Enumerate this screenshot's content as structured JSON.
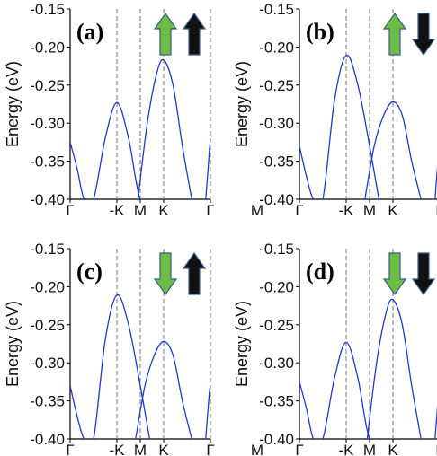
{
  "chart_data": [
    {
      "type": "line",
      "panel_label": "(a)",
      "ylabel": "Energy (eV)",
      "ylim": [
        -0.4,
        -0.15
      ],
      "yticks": [
        -0.15,
        -0.2,
        -0.25,
        -0.3,
        -0.35,
        -0.4
      ],
      "ytick_labels": [
        "-0.15",
        "-0.20",
        "-0.25",
        "-0.30",
        "-0.35",
        "-0.40"
      ],
      "xlim": [
        0,
        6
      ],
      "xticks": [
        0,
        2,
        3,
        4,
        6
      ],
      "xtick_labels": [
        "Γ",
        "-K",
        "M",
        "K",
        "Γ",
        "M"
      ],
      "xtick_positions": [
        0,
        2,
        3,
        4,
        6,
        8
      ],
      "vlines": [
        2,
        3,
        4,
        6
      ],
      "spin_arrows": [
        {
          "direction": "up",
          "color": "#6dbd45"
        },
        {
          "direction": "up",
          "color": "#111111"
        }
      ],
      "line_color": "#1f3ad1",
      "bands": [
        {
          "name": "",
          "x": [
            0,
            0.3,
            0.6,
            1.0,
            1.5,
            2.0,
            2.5,
            3.0,
            3.6
          ],
          "y": [
            -0.325,
            -0.36,
            -0.4,
            -0.4,
            -0.32,
            -0.273,
            -0.32,
            -0.4,
            -0.4
          ]
        },
        {
          "name": "",
          "x": [
            2.9,
            3.3,
            3.7,
            4.0,
            4.4,
            4.8,
            5.2
          ],
          "y": [
            -0.4,
            -0.3,
            -0.235,
            -0.217,
            -0.25,
            -0.33,
            -0.4
          ]
        },
        {
          "name": "",
          "x": [
            5.8,
            5.9,
            6.0,
            6.1,
            6.2
          ],
          "y": [
            -0.4,
            -0.36,
            -0.325,
            -0.36,
            -0.4
          ]
        }
      ]
    },
    {
      "type": "line",
      "panel_label": "(b)",
      "ylabel": "Energy (eV)",
      "ylim": [
        -0.4,
        -0.15
      ],
      "yticks": [
        -0.15,
        -0.2,
        -0.25,
        -0.3,
        -0.35,
        -0.4
      ],
      "ytick_labels": [
        "-0.15",
        "-0.20",
        "-0.25",
        "-0.30",
        "-0.35",
        "-0.40"
      ],
      "xlim": [
        0,
        6
      ],
      "xticks": [
        0,
        2,
        3,
        4,
        6
      ],
      "xtick_labels": [
        "Γ",
        "-K",
        "M",
        "K",
        "Γ",
        "M"
      ],
      "xtick_positions": [
        0,
        2,
        3,
        4,
        6,
        8
      ],
      "vlines": [
        2,
        3,
        4,
        6
      ],
      "spin_arrows": [
        {
          "direction": "up",
          "color": "#6dbd45"
        },
        {
          "direction": "down",
          "color": "#111111"
        }
      ],
      "line_color": "#1f3ad1",
      "bands": [
        {
          "name": "",
          "x": [
            0,
            0.3,
            0.6,
            1.0,
            1.5,
            2.0,
            2.5,
            3.0,
            3.4
          ],
          "y": [
            -0.33,
            -0.37,
            -0.4,
            -0.4,
            -0.27,
            -0.211,
            -0.25,
            -0.33,
            -0.4
          ]
        },
        {
          "name": "",
          "x": [
            2.8,
            3.2,
            3.6,
            4.0,
            4.4,
            4.8,
            5.2
          ],
          "y": [
            -0.4,
            -0.33,
            -0.29,
            -0.272,
            -0.29,
            -0.35,
            -0.4
          ]
        },
        {
          "name": "",
          "x": [
            5.8,
            5.9,
            6.0,
            6.1,
            6.2
          ],
          "y": [
            -0.4,
            -0.36,
            -0.33,
            -0.36,
            -0.4
          ]
        }
      ]
    },
    {
      "type": "line",
      "panel_label": "(c)",
      "ylabel": "Energy (eV)",
      "ylim": [
        -0.4,
        -0.15
      ],
      "yticks": [
        -0.15,
        -0.2,
        -0.25,
        -0.3,
        -0.35,
        -0.4
      ],
      "ytick_labels": [
        "-0.15",
        "-0.20",
        "-0.25",
        "-0.30",
        "-0.35",
        "-0.40"
      ],
      "xlim": [
        0,
        6
      ],
      "xticks": [
        0,
        2,
        3,
        4,
        6
      ],
      "xtick_labels": [
        "Γ",
        "-K",
        "M",
        "K",
        "Γ",
        "M"
      ],
      "xtick_positions": [
        0,
        2,
        3,
        4,
        6,
        8
      ],
      "vlines": [
        2,
        3,
        4,
        6
      ],
      "spin_arrows": [
        {
          "direction": "down",
          "color": "#6dbd45"
        },
        {
          "direction": "up",
          "color": "#111111"
        }
      ],
      "line_color": "#1f3ad1",
      "bands": [
        {
          "name": "",
          "x": [
            0,
            0.3,
            0.6,
            1.0,
            1.5,
            2.0,
            2.5,
            3.0,
            3.4
          ],
          "y": [
            -0.33,
            -0.37,
            -0.4,
            -0.4,
            -0.27,
            -0.211,
            -0.25,
            -0.33,
            -0.4
          ]
        },
        {
          "name": "",
          "x": [
            2.8,
            3.2,
            3.6,
            4.0,
            4.4,
            4.8,
            5.2
          ],
          "y": [
            -0.4,
            -0.33,
            -0.29,
            -0.272,
            -0.29,
            -0.35,
            -0.4
          ]
        },
        {
          "name": "",
          "x": [
            5.8,
            5.9,
            6.0,
            6.1,
            6.2
          ],
          "y": [
            -0.4,
            -0.36,
            -0.33,
            -0.36,
            -0.4
          ]
        }
      ]
    },
    {
      "type": "line",
      "panel_label": "(d)",
      "ylabel": "Energy (eV)",
      "ylim": [
        -0.4,
        -0.15
      ],
      "yticks": [
        -0.15,
        -0.2,
        -0.25,
        -0.3,
        -0.35,
        -0.4
      ],
      "ytick_labels": [
        "-0.15",
        "-0.20",
        "-0.25",
        "-0.30",
        "-0.35",
        "-0.40"
      ],
      "xlim": [
        0,
        6
      ],
      "xticks": [
        0,
        2,
        3,
        4,
        6
      ],
      "xtick_labels": [
        "Γ",
        "-K",
        "M",
        "K",
        "Γ",
        "M"
      ],
      "xtick_positions": [
        0,
        2,
        3,
        4,
        6,
        8
      ],
      "vlines": [
        2,
        3,
        4,
        6
      ],
      "spin_arrows": [
        {
          "direction": "down",
          "color": "#6dbd45"
        },
        {
          "direction": "down",
          "color": "#111111"
        }
      ],
      "line_color": "#1f3ad1",
      "bands": [
        {
          "name": "",
          "x": [
            0,
            0.3,
            0.6,
            1.0,
            1.5,
            2.0,
            2.5,
            3.0,
            3.6
          ],
          "y": [
            -0.325,
            -0.36,
            -0.4,
            -0.4,
            -0.32,
            -0.273,
            -0.32,
            -0.4,
            -0.4
          ]
        },
        {
          "name": "",
          "x": [
            2.9,
            3.3,
            3.7,
            4.0,
            4.4,
            4.8,
            5.2
          ],
          "y": [
            -0.4,
            -0.3,
            -0.235,
            -0.217,
            -0.25,
            -0.33,
            -0.4
          ]
        },
        {
          "name": "",
          "x": [
            5.8,
            5.9,
            6.0,
            6.1,
            6.2
          ],
          "y": [
            -0.4,
            -0.36,
            -0.325,
            -0.36,
            -0.4
          ]
        }
      ]
    }
  ]
}
